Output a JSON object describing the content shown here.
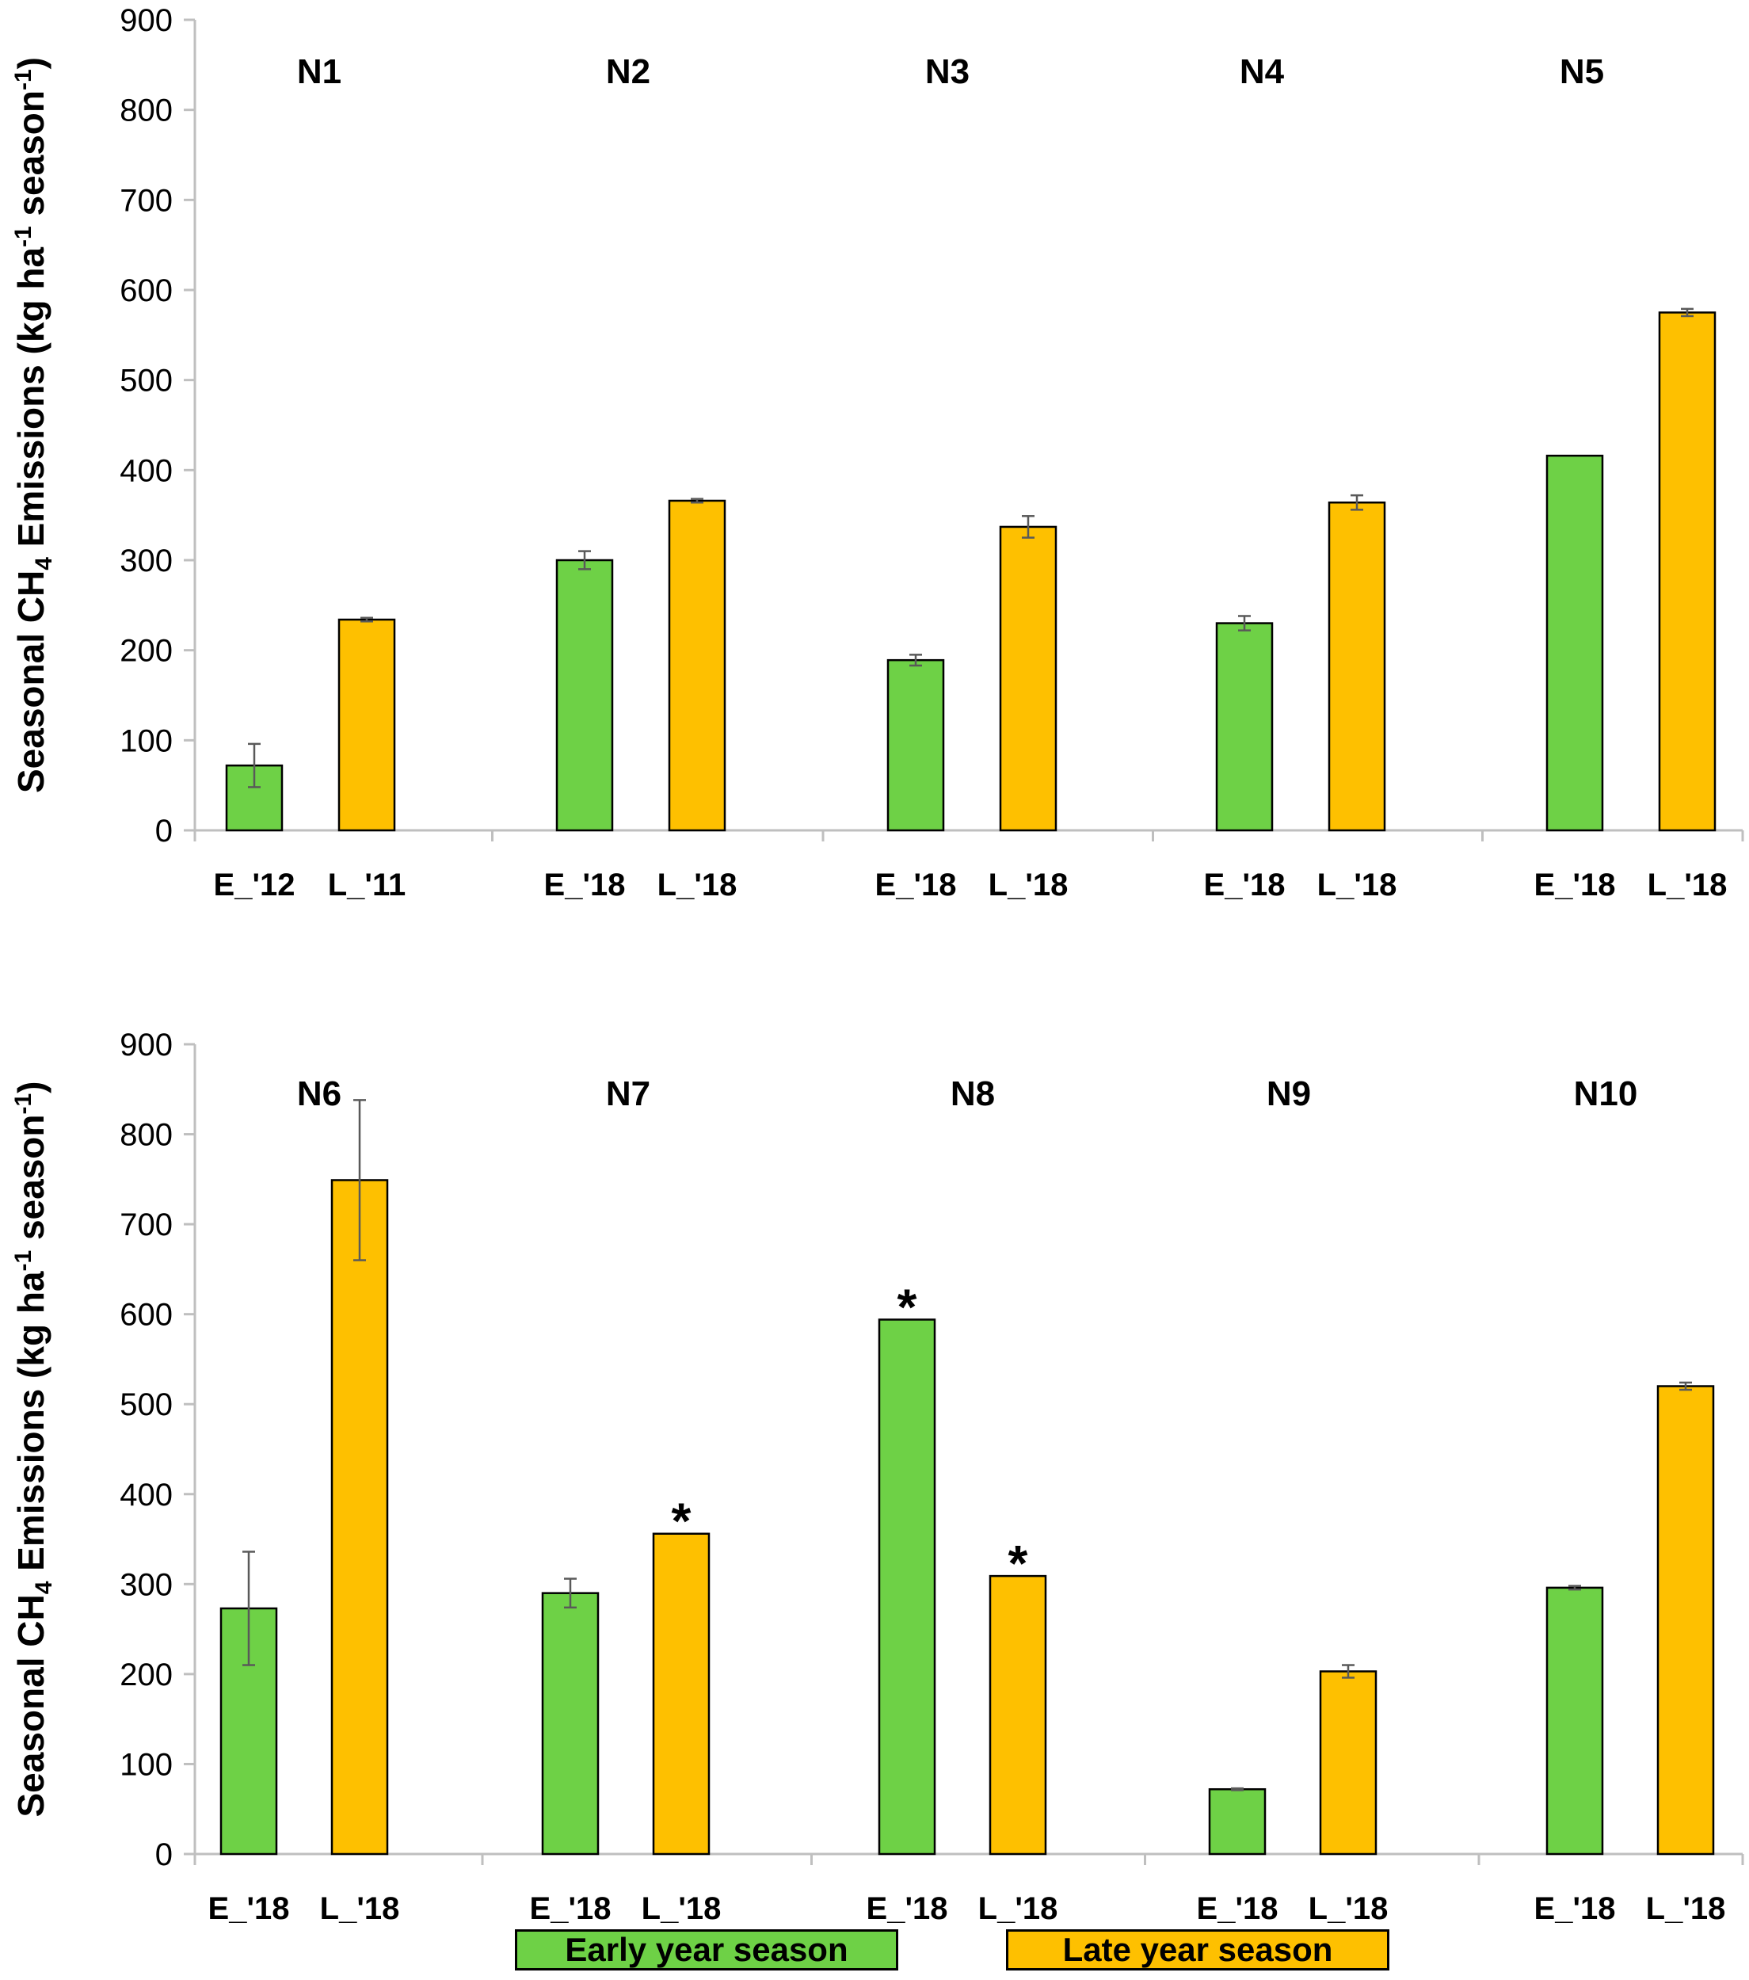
{
  "colors": {
    "early": "#6ed146",
    "late": "#fec000",
    "axis": "#bfbfbf",
    "errorbar": "#595959"
  },
  "legend": {
    "early": "Early year season",
    "late": "Late year season"
  },
  "chart_data": [
    {
      "type": "bar",
      "ylabel": {
        "main": "Seasonal CH",
        "sub": "4",
        "rest1": " Emissions (kg ha",
        "sup1": "-1",
        "rest2": " season",
        "sup2": "-1",
        "end": ")"
      },
      "ylim": [
        0,
        900
      ],
      "yticks": [
        "0",
        "100",
        "200",
        "300",
        "400",
        "500",
        "600",
        "700",
        "800",
        "900"
      ],
      "groups": [
        {
          "name": "N1",
          "early": {
            "label": "E_'12",
            "value": 72,
            "err": 24
          },
          "late": {
            "label": "L_'11",
            "value": 234,
            "err": 2
          }
        },
        {
          "name": "N2",
          "early": {
            "label": "E_'18",
            "value": 300,
            "err": 10
          },
          "late": {
            "label": "L_'18",
            "value": 366,
            "err": 2
          }
        },
        {
          "name": "N3",
          "early": {
            "label": "E_'18",
            "value": 189,
            "err": 6
          },
          "late": {
            "label": "L_'18",
            "value": 337,
            "err": 12
          }
        },
        {
          "name": "N4",
          "early": {
            "label": "E_'18",
            "value": 230,
            "err": 8
          },
          "late": {
            "label": "L_'18",
            "value": 364,
            "err": 8
          }
        },
        {
          "name": "N5",
          "early": {
            "label": "E_'18",
            "value": 416,
            "err": 0
          },
          "late": {
            "label": "L_'18",
            "value": 575,
            "err": 4
          }
        }
      ]
    },
    {
      "type": "bar",
      "ylabel": {
        "main": "Seasonal  CH",
        "sub": "4",
        "rest1": " Emissions (kg ha",
        "sup1": "-1",
        "rest2": " season",
        "sup2": "-1",
        "end": ")"
      },
      "ylim": [
        0,
        900
      ],
      "yticks": [
        "0",
        "100",
        "200",
        "300",
        "400",
        "500",
        "600",
        "700",
        "800",
        "900"
      ],
      "groups": [
        {
          "name": "N6",
          "early": {
            "label": "E_'18",
            "value": 273,
            "err": 63
          },
          "late": {
            "label": "L_'18",
            "value": 749,
            "err": 89
          }
        },
        {
          "name": "N7",
          "early": {
            "label": "E_'18",
            "value": 290,
            "err": 16
          },
          "late": {
            "label": "L_'18",
            "value": 356,
            "err": 0,
            "star": "*"
          }
        },
        {
          "name": "N8",
          "early": {
            "label": "E_'18",
            "value": 594,
            "err": 0,
            "star": "*"
          },
          "late": {
            "label": "L_'18",
            "value": 309,
            "err": 0,
            "star": "*"
          }
        },
        {
          "name": "N9",
          "early": {
            "label": "E_'18",
            "value": 72,
            "err": 1
          },
          "late": {
            "label": "L_'18",
            "value": 203,
            "err": 7
          }
        },
        {
          "name": "N10",
          "early": {
            "label": "E_'18",
            "value": 296,
            "err": 2
          },
          "late": {
            "label": "L_'18",
            "value": 520,
            "err": 4
          }
        }
      ]
    }
  ]
}
